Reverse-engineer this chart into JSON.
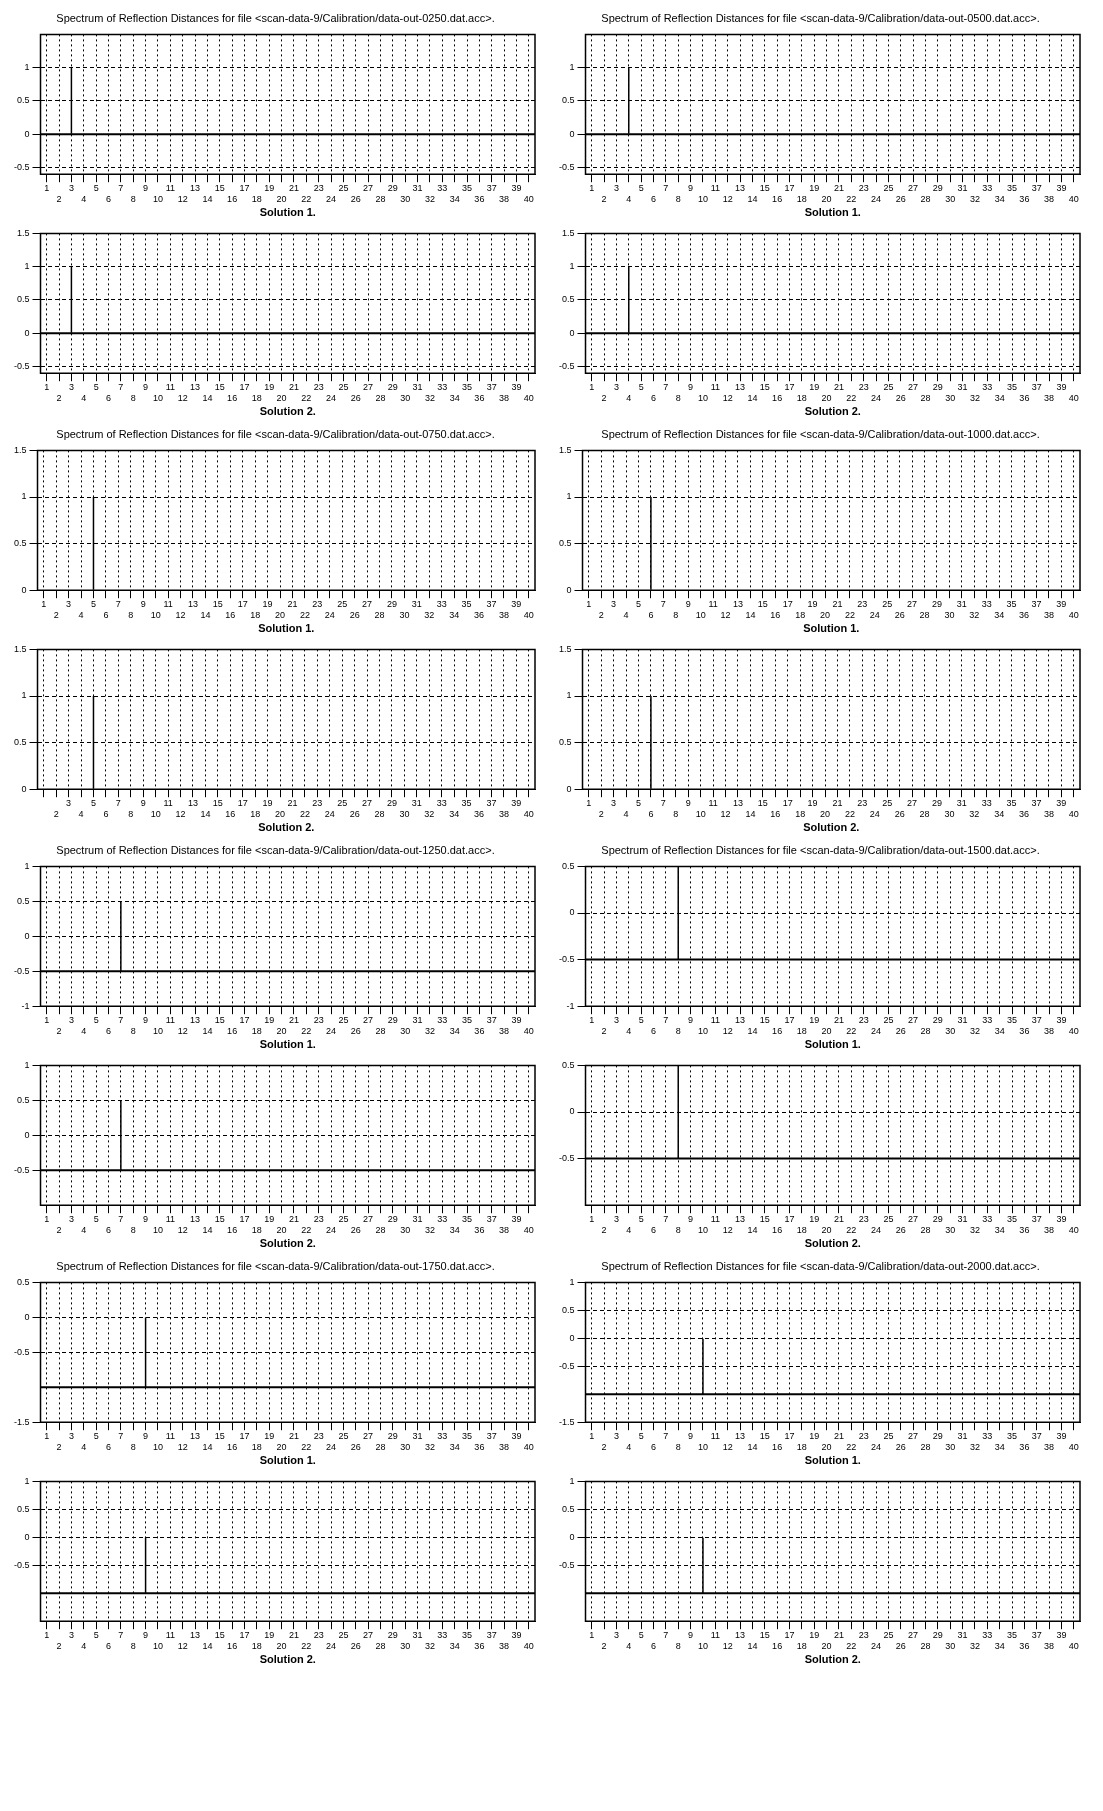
{
  "chart_data": [
    {
      "type": "bar",
      "title": "Spectrum of Reflection Distances for file <scan-data-9/Calibration/data-out-0250.dat.acc>.",
      "xlabel": "Solution 1.",
      "categories": [
        "1",
        "2",
        "3",
        "4",
        "5",
        "6",
        "7",
        "8",
        "9",
        "10",
        "11",
        "12",
        "13",
        "14",
        "15",
        "16",
        "17",
        "18",
        "19",
        "20",
        "21",
        "22",
        "23",
        "24",
        "25",
        "26",
        "27",
        "28",
        "29",
        "30",
        "31",
        "32",
        "33",
        "34",
        "35",
        "36",
        "37",
        "38",
        "39",
        "40"
      ],
      "values": [
        0,
        0,
        1,
        0,
        0,
        0,
        0,
        0,
        0,
        0,
        0,
        0,
        0,
        0,
        0,
        0,
        0,
        0,
        0,
        0,
        0,
        0,
        0,
        0,
        0,
        0,
        0,
        0,
        0,
        0,
        0,
        0,
        0,
        0,
        0,
        0,
        0,
        0,
        0,
        0
      ],
      "color": "#000000",
      "ylim": [
        -0.6,
        1.5
      ],
      "yticks": [
        -0.5,
        0,
        0.5,
        1
      ],
      "grid": true,
      "ref_lines": [
        {
          "axis": "y",
          "value": 0
        }
      ]
    },
    {
      "type": "bar",
      "title": "Spectrum of Reflection Distances for file <scan-data-9/Calibration/data-out-0500.dat.acc>.",
      "xlabel": "Solution 1.",
      "categories": [
        "1",
        "2",
        "3",
        "4",
        "5",
        "6",
        "7",
        "8",
        "9",
        "10",
        "11",
        "12",
        "13",
        "14",
        "15",
        "16",
        "17",
        "18",
        "19",
        "20",
        "21",
        "22",
        "23",
        "24",
        "25",
        "26",
        "27",
        "28",
        "29",
        "30",
        "31",
        "32",
        "33",
        "34",
        "35",
        "36",
        "37",
        "38",
        "39",
        "40"
      ],
      "values": [
        0,
        0,
        0,
        1,
        0,
        0,
        0,
        0,
        0,
        0,
        0,
        0,
        0,
        0,
        0,
        0,
        0,
        0,
        0,
        0,
        0,
        0,
        0,
        0,
        0,
        0,
        0,
        0,
        0,
        0,
        0,
        0,
        0,
        0,
        0,
        0,
        0,
        0,
        0,
        0
      ],
      "color": "#000000",
      "ylim": [
        -0.6,
        1.5
      ],
      "yticks": [
        -0.5,
        0,
        0.5,
        1
      ],
      "grid": true,
      "ref_lines": [
        {
          "axis": "y",
          "value": 0
        }
      ]
    },
    {
      "type": "bar",
      "xlabel": "Solution 2.",
      "categories": [
        "1",
        "2",
        "3",
        "4",
        "5",
        "6",
        "7",
        "8",
        "9",
        "10",
        "11",
        "12",
        "13",
        "14",
        "15",
        "16",
        "17",
        "18",
        "19",
        "20",
        "21",
        "22",
        "23",
        "24",
        "25",
        "26",
        "27",
        "28",
        "29",
        "30",
        "31",
        "32",
        "33",
        "34",
        "35",
        "36",
        "37",
        "38",
        "39",
        "40"
      ],
      "values": [
        0,
        0,
        1,
        0,
        0,
        0,
        0,
        0,
        0,
        0,
        0,
        0,
        0,
        0,
        0,
        0,
        0,
        0,
        0,
        0,
        0,
        0,
        0,
        0,
        0,
        0,
        0,
        0,
        0,
        0,
        0,
        0,
        0,
        0,
        0,
        0,
        0,
        0,
        0,
        0
      ],
      "color": "#000000",
      "ylim": [
        -0.6,
        1.5
      ],
      "yticks": [
        -0.5,
        0,
        0.5,
        1,
        1.5
      ],
      "grid": true,
      "ref_lines": [
        {
          "axis": "y",
          "value": 0
        }
      ]
    },
    {
      "type": "bar",
      "xlabel": "Solution 2.",
      "categories": [
        "1",
        "2",
        "3",
        "4",
        "5",
        "6",
        "7",
        "8",
        "9",
        "10",
        "11",
        "12",
        "13",
        "14",
        "15",
        "16",
        "17",
        "18",
        "19",
        "20",
        "21",
        "22",
        "23",
        "24",
        "25",
        "26",
        "27",
        "28",
        "29",
        "30",
        "31",
        "32",
        "33",
        "34",
        "35",
        "36",
        "37",
        "38",
        "39",
        "40"
      ],
      "values": [
        0,
        0,
        0,
        1,
        0,
        0,
        0,
        0,
        0,
        0,
        0,
        0,
        0,
        0,
        0,
        0,
        0,
        0,
        0,
        0,
        0,
        0,
        0,
        0,
        0,
        0,
        0,
        0,
        0,
        0,
        0,
        0,
        0,
        0,
        0,
        0,
        0,
        0,
        0,
        0
      ],
      "color": "#000000",
      "ylim": [
        -0.6,
        1.5
      ],
      "yticks": [
        -0.5,
        0,
        0.5,
        1,
        1.5
      ],
      "grid": true,
      "ref_lines": [
        {
          "axis": "y",
          "value": 0
        }
      ]
    },
    {
      "type": "bar",
      "title": "Spectrum of Reflection Distances for file <scan-data-9/Calibration/data-out-0750.dat.acc>.",
      "xlabel": "Solution 1.",
      "categories": [
        "1",
        "2",
        "3",
        "4",
        "5",
        "6",
        "7",
        "8",
        "9",
        "10",
        "11",
        "12",
        "13",
        "14",
        "15",
        "16",
        "17",
        "18",
        "19",
        "20",
        "21",
        "22",
        "23",
        "24",
        "25",
        "26",
        "27",
        "28",
        "29",
        "30",
        "31",
        "32",
        "33",
        "34",
        "35",
        "36",
        "37",
        "38",
        "39",
        "40"
      ],
      "values": [
        0,
        0,
        0,
        0,
        1,
        0,
        0,
        0,
        0,
        0,
        0,
        0,
        0,
        0,
        0,
        0,
        0,
        0,
        0,
        0,
        0,
        0,
        0,
        0,
        0,
        0,
        0,
        0,
        0,
        0,
        0,
        0,
        0,
        0,
        0,
        0,
        0,
        0,
        0,
        0
      ],
      "color": "#000000",
      "ylim": [
        0,
        1.5
      ],
      "yticks": [
        0,
        0.5,
        1,
        1.5
      ],
      "grid": true
    },
    {
      "type": "bar",
      "title": "Spectrum of Reflection Distances for file <scan-data-9/Calibration/data-out-1000.dat.acc>.",
      "xlabel": "Solution 1.",
      "categories": [
        "1",
        "2",
        "3",
        "4",
        "5",
        "6",
        "7",
        "8",
        "9",
        "10",
        "11",
        "12",
        "13",
        "14",
        "15",
        "16",
        "17",
        "18",
        "19",
        "20",
        "21",
        "22",
        "23",
        "24",
        "25",
        "26",
        "27",
        "28",
        "29",
        "30",
        "31",
        "32",
        "33",
        "34",
        "35",
        "36",
        "37",
        "38",
        "39",
        "40"
      ],
      "values": [
        0,
        0,
        0,
        0,
        0,
        1,
        0,
        0,
        0,
        0,
        0,
        0,
        0,
        0,
        0,
        0,
        0,
        0,
        0,
        0,
        0,
        0,
        0,
        0,
        0,
        0,
        0,
        0,
        0,
        0,
        0,
        0,
        0,
        0,
        0,
        0,
        0,
        0,
        0,
        0
      ],
      "color": "#000000",
      "ylim": [
        0,
        1.5
      ],
      "yticks": [
        0,
        0.5,
        1,
        1.5
      ],
      "grid": true
    },
    {
      "type": "bar",
      "xlabel": "Solution 2.",
      "categories": [
        null,
        "2",
        "3",
        "4",
        "5",
        "6",
        "7",
        "8",
        "9",
        "10",
        "11",
        "12",
        "13",
        "14",
        "15",
        "16",
        "17",
        "18",
        "19",
        "20",
        "21",
        "22",
        "23",
        "24",
        "25",
        "26",
        "27",
        "28",
        "29",
        "30",
        "31",
        "32",
        "33",
        "34",
        "35",
        "36",
        "37",
        "38",
        "39",
        "40"
      ],
      "values": [
        0,
        0,
        0,
        0,
        1,
        0,
        0,
        0,
        0,
        0,
        0,
        0,
        0,
        0,
        0,
        0,
        0,
        0,
        0,
        0,
        0,
        0,
        0,
        0,
        0,
        0,
        0,
        0,
        0,
        0,
        0,
        0,
        0,
        0,
        0,
        0,
        0,
        0,
        0,
        0
      ],
      "color": "#000000",
      "ylim": [
        0,
        1.5
      ],
      "yticks": [
        0,
        0.5,
        1,
        1.5
      ],
      "grid": true
    },
    {
      "type": "bar",
      "xlabel": "Solution 2.",
      "categories": [
        "1",
        "2",
        "3",
        "4",
        "5",
        "6",
        "7",
        "8",
        "9",
        "10",
        "11",
        "12",
        "13",
        "14",
        "15",
        "16",
        "17",
        "18",
        "19",
        "20",
        "21",
        "22",
        "23",
        "24",
        "25",
        "26",
        "27",
        "28",
        "29",
        "30",
        "31",
        "32",
        "33",
        "34",
        "35",
        "36",
        "37",
        "38",
        "39",
        "40"
      ],
      "values": [
        0,
        0,
        0,
        0,
        0,
        1,
        0,
        0,
        0,
        0,
        0,
        0,
        0,
        0,
        0,
        0,
        0,
        0,
        0,
        0,
        0,
        0,
        0,
        0,
        0,
        0,
        0,
        0,
        0,
        0,
        0,
        0,
        0,
        0,
        0,
        0,
        0,
        0,
        0,
        0
      ],
      "color": "#000000",
      "ylim": [
        0,
        1.5
      ],
      "yticks": [
        0,
        0.5,
        1,
        1.5
      ],
      "grid": true
    },
    {
      "type": "bar",
      "title": "Spectrum of Reflection Distances for file <scan-data-9/Calibration/data-out-1250.dat.acc>.",
      "xlabel": "Solution 1.",
      "categories": [
        "1",
        "2",
        "3",
        "4",
        "5",
        "6",
        "7",
        "8",
        "9",
        "10",
        "11",
        "12",
        "13",
        "14",
        "15",
        "16",
        "17",
        "18",
        "19",
        "20",
        "21",
        "22",
        "23",
        "24",
        "25",
        "26",
        "27",
        "28",
        "29",
        "30",
        "31",
        "32",
        "33",
        "34",
        "35",
        "36",
        "37",
        "38",
        "39",
        "40"
      ],
      "values": [
        null,
        null,
        null,
        null,
        null,
        null,
        1,
        null,
        null,
        null,
        null,
        null,
        null,
        null,
        null,
        null,
        null,
        null,
        null,
        null,
        null,
        null,
        null,
        null,
        null,
        null,
        null,
        null,
        null,
        null,
        null,
        null,
        null,
        null,
        null,
        null,
        null,
        null,
        null,
        null
      ],
      "base": [
        null,
        null,
        null,
        null,
        null,
        null,
        -0.5,
        null,
        null,
        null,
        null,
        null,
        null,
        null,
        null,
        null,
        null,
        null,
        null,
        null,
        null,
        null,
        null,
        null,
        null,
        null,
        null,
        null,
        null,
        null,
        null,
        null,
        null,
        null,
        null,
        null,
        null,
        null,
        null,
        null
      ],
      "color": "#000000",
      "ylim": [
        -1,
        1
      ],
      "yticks": [
        -1,
        -0.5,
        0,
        0.5,
        1
      ],
      "grid": true,
      "ref_lines": [
        {
          "axis": "y",
          "value": -0.5
        }
      ]
    },
    {
      "type": "bar",
      "title": "Spectrum of Reflection Distances for file <scan-data-9/Calibration/data-out-1500.dat.acc>.",
      "xlabel": "Solution 1.",
      "categories": [
        "1",
        "2",
        "3",
        "4",
        "5",
        "6",
        "7",
        "8",
        "9",
        "10",
        "11",
        "12",
        "13",
        "14",
        "15",
        "16",
        "17",
        "18",
        "19",
        "20",
        "21",
        "22",
        "23",
        "24",
        "25",
        "26",
        "27",
        "28",
        "29",
        "30",
        "31",
        "32",
        "33",
        "34",
        "35",
        "36",
        "37",
        "38",
        "39",
        "40"
      ],
      "values": [
        null,
        null,
        null,
        null,
        null,
        null,
        null,
        1,
        null,
        null,
        null,
        null,
        null,
        null,
        null,
        null,
        null,
        null,
        null,
        null,
        null,
        null,
        null,
        null,
        null,
        null,
        null,
        null,
        null,
        null,
        null,
        null,
        null,
        null,
        null,
        null,
        null,
        null,
        null,
        null
      ],
      "base": [
        null,
        null,
        null,
        null,
        null,
        null,
        null,
        -0.5,
        null,
        null,
        null,
        null,
        null,
        null,
        null,
        null,
        null,
        null,
        null,
        null,
        null,
        null,
        null,
        null,
        null,
        null,
        null,
        null,
        null,
        null,
        null,
        null,
        null,
        null,
        null,
        null,
        null,
        null,
        null,
        null
      ],
      "color": "#000000",
      "ylim": [
        -1,
        0.5
      ],
      "yticks": [
        -1,
        -0.5,
        0,
        0.5
      ],
      "grid": true,
      "ref_lines": [
        {
          "axis": "y",
          "value": -0.5
        }
      ]
    },
    {
      "type": "bar",
      "xlabel": "Solution 2.",
      "categories": [
        "1",
        "2",
        "3",
        "4",
        "5",
        "6",
        "7",
        "8",
        "9",
        "10",
        "11",
        "12",
        "13",
        "14",
        "15",
        "16",
        "17",
        "18",
        "19",
        "20",
        "21",
        "22",
        "23",
        "24",
        "25",
        "26",
        "27",
        "28",
        "29",
        "30",
        "31",
        "32",
        "33",
        "34",
        "35",
        "36",
        "37",
        "38",
        "39",
        "40"
      ],
      "values": [
        null,
        null,
        null,
        null,
        null,
        null,
        1,
        null,
        null,
        null,
        null,
        null,
        null,
        null,
        null,
        null,
        null,
        null,
        null,
        null,
        null,
        null,
        null,
        null,
        null,
        null,
        null,
        null,
        null,
        null,
        null,
        null,
        null,
        null,
        null,
        null,
        null,
        null,
        null,
        null
      ],
      "base": [
        null,
        null,
        null,
        null,
        null,
        null,
        -0.5,
        null,
        null,
        null,
        null,
        null,
        null,
        null,
        null,
        null,
        null,
        null,
        null,
        null,
        null,
        null,
        null,
        null,
        null,
        null,
        null,
        null,
        null,
        null,
        null,
        null,
        null,
        null,
        null,
        null,
        null,
        null,
        null,
        null
      ],
      "color": "#000000",
      "ylim": [
        -1,
        1
      ],
      "yticks": [
        -0.5,
        0,
        0.5,
        1
      ],
      "grid": true,
      "ref_lines": [
        {
          "axis": "y",
          "value": -0.5
        }
      ]
    },
    {
      "type": "bar",
      "xlabel": "Solution 2.",
      "categories": [
        "1",
        "2",
        "3",
        "4",
        "5",
        "6",
        "7",
        "8",
        "9",
        "10",
        "11",
        "12",
        "13",
        "14",
        "15",
        "16",
        "17",
        "18",
        "19",
        "20",
        "21",
        "22",
        "23",
        "24",
        "25",
        "26",
        "27",
        "28",
        "29",
        "30",
        "31",
        "32",
        "33",
        "34",
        "35",
        "36",
        "37",
        "38",
        "39",
        "40"
      ],
      "values": [
        null,
        null,
        null,
        null,
        null,
        null,
        null,
        1,
        null,
        null,
        null,
        null,
        null,
        null,
        null,
        null,
        null,
        null,
        null,
        null,
        null,
        null,
        null,
        null,
        null,
        null,
        null,
        null,
        null,
        null,
        null,
        null,
        null,
        null,
        null,
        null,
        null,
        null,
        null,
        null
      ],
      "base": [
        null,
        null,
        null,
        null,
        null,
        null,
        null,
        -0.5,
        null,
        null,
        null,
        null,
        null,
        null,
        null,
        null,
        null,
        null,
        null,
        null,
        null,
        null,
        null,
        null,
        null,
        null,
        null,
        null,
        null,
        null,
        null,
        null,
        null,
        null,
        null,
        null,
        null,
        null,
        null,
        null
      ],
      "color": "#000000",
      "ylim": [
        -1,
        0.5
      ],
      "yticks": [
        -0.5,
        0,
        0.5
      ],
      "grid": true,
      "ref_lines": [
        {
          "axis": "y",
          "value": -0.5
        }
      ]
    },
    {
      "type": "bar",
      "title": "Spectrum of Reflection Distances for file <scan-data-9/Calibration/data-out-1750.dat.acc>.",
      "xlabel": "Solution 1.",
      "categories": [
        "1",
        "2",
        "3",
        "4",
        "5",
        "6",
        "7",
        "8",
        "9",
        "10",
        "11",
        "12",
        "13",
        "14",
        "15",
        "16",
        "17",
        "18",
        "19",
        "20",
        "21",
        "22",
        "23",
        "24",
        "25",
        "26",
        "27",
        "28",
        "29",
        "30",
        "31",
        "32",
        "33",
        "34",
        "35",
        "36",
        "37",
        "38",
        "39",
        "40"
      ],
      "values": [
        null,
        null,
        null,
        null,
        null,
        null,
        null,
        null,
        1,
        null,
        null,
        null,
        null,
        null,
        null,
        null,
        null,
        null,
        null,
        null,
        null,
        null,
        null,
        null,
        null,
        null,
        null,
        null,
        null,
        null,
        null,
        null,
        null,
        null,
        null,
        null,
        null,
        null,
        null,
        null
      ],
      "base": [
        null,
        null,
        null,
        null,
        null,
        null,
        null,
        null,
        -1,
        null,
        null,
        null,
        null,
        null,
        null,
        null,
        null,
        null,
        null,
        null,
        null,
        null,
        null,
        null,
        null,
        null,
        null,
        null,
        null,
        null,
        null,
        null,
        null,
        null,
        null,
        null,
        null,
        null,
        null,
        null
      ],
      "color": "#000000",
      "ylim": [
        -1.5,
        0.5
      ],
      "yticks": [
        -1.5,
        -0.5,
        0,
        0.5
      ],
      "grid": true,
      "ref_lines": [
        {
          "axis": "y",
          "value": -1
        }
      ]
    },
    {
      "type": "bar",
      "title": "Spectrum of Reflection Distances for file <scan-data-9/Calibration/data-out-2000.dat.acc>.",
      "xlabel": "Solution 1.",
      "categories": [
        "1",
        "2",
        "3",
        "4",
        "5",
        "6",
        "7",
        "8",
        "9",
        "10",
        "11",
        "12",
        "13",
        "14",
        "15",
        "16",
        "17",
        "18",
        "19",
        "20",
        "21",
        "22",
        "23",
        "24",
        "25",
        "26",
        "27",
        "28",
        "29",
        "30",
        "31",
        "32",
        "33",
        "34",
        "35",
        "36",
        "37",
        "38",
        "39",
        "40"
      ],
      "values": [
        null,
        null,
        null,
        null,
        null,
        null,
        null,
        null,
        null,
        1,
        null,
        null,
        null,
        null,
        null,
        null,
        null,
        null,
        null,
        null,
        null,
        null,
        null,
        null,
        null,
        null,
        null,
        null,
        null,
        null,
        null,
        null,
        null,
        null,
        null,
        null,
        null,
        null,
        null,
        null
      ],
      "base": [
        null,
        null,
        null,
        null,
        null,
        null,
        null,
        null,
        null,
        -1,
        null,
        null,
        null,
        null,
        null,
        null,
        null,
        null,
        null,
        null,
        null,
        null,
        null,
        null,
        null,
        null,
        null,
        null,
        null,
        null,
        null,
        null,
        null,
        null,
        null,
        null,
        null,
        null,
        null,
        null
      ],
      "color": "#000000",
      "ylim": [
        -1.5,
        1
      ],
      "yticks": [
        -1.5,
        -0.5,
        0,
        0.5,
        1
      ],
      "grid": true,
      "ref_lines": [
        {
          "axis": "y",
          "value": -1
        }
      ]
    },
    {
      "type": "bar",
      "xlabel": "Solution 2.",
      "categories": [
        "1",
        "2",
        "3",
        "4",
        "5",
        "6",
        "7",
        "8",
        "9",
        "10",
        "11",
        "12",
        "13",
        "14",
        "15",
        "16",
        "17",
        "18",
        "19",
        "20",
        "21",
        "22",
        "23",
        "24",
        "25",
        "26",
        "27",
        "28",
        "29",
        "30",
        "31",
        "32",
        "33",
        "34",
        "35",
        "36",
        "37",
        "38",
        "39",
        "40"
      ],
      "values": [
        null,
        null,
        null,
        null,
        null,
        null,
        null,
        null,
        1,
        null,
        null,
        null,
        null,
        null,
        null,
        null,
        null,
        null,
        null,
        null,
        null,
        null,
        null,
        null,
        null,
        null,
        null,
        null,
        null,
        null,
        null,
        null,
        null,
        null,
        null,
        null,
        null,
        null,
        null,
        null
      ],
      "base": [
        null,
        null,
        null,
        null,
        null,
        null,
        null,
        null,
        -1,
        null,
        null,
        null,
        null,
        null,
        null,
        null,
        null,
        null,
        null,
        null,
        null,
        null,
        null,
        null,
        null,
        null,
        null,
        null,
        null,
        null,
        null,
        null,
        null,
        null,
        null,
        null,
        null,
        null,
        null,
        null
      ],
      "color": "#000000",
      "ylim": [
        -1.5,
        1
      ],
      "yticks": [
        -0.5,
        0,
        0.5,
        1
      ],
      "grid": true,
      "ref_lines": [
        {
          "axis": "y",
          "value": -1
        }
      ]
    },
    {
      "type": "bar",
      "xlabel": "Solution 2.",
      "categories": [
        "1",
        "2",
        "3",
        "4",
        "5",
        "6",
        "7",
        "8",
        "9",
        "10",
        "11",
        "12",
        "13",
        "14",
        "15",
        "16",
        "17",
        "18",
        "19",
        "20",
        "21",
        "22",
        "23",
        "24",
        "25",
        "26",
        "27",
        "28",
        "29",
        "30",
        "31",
        "32",
        "33",
        "34",
        "35",
        "36",
        "37",
        "38",
        "39",
        "40"
      ],
      "values": [
        null,
        null,
        null,
        null,
        null,
        null,
        null,
        null,
        null,
        1,
        null,
        null,
        null,
        null,
        null,
        null,
        null,
        null,
        null,
        null,
        null,
        null,
        null,
        null,
        null,
        null,
        null,
        null,
        null,
        null,
        null,
        null,
        null,
        null,
        null,
        null,
        null,
        null,
        null,
        null
      ],
      "base": [
        null,
        null,
        null,
        null,
        null,
        null,
        null,
        null,
        null,
        -1,
        null,
        null,
        null,
        null,
        null,
        null,
        null,
        null,
        null,
        null,
        null,
        null,
        null,
        null,
        null,
        null,
        null,
        null,
        null,
        null,
        null,
        null,
        null,
        null,
        null,
        null,
        null,
        null,
        null,
        null
      ],
      "color": "#000000",
      "ylim": [
        -1.5,
        1
      ],
      "yticks": [
        -0.5,
        0,
        0.5,
        1
      ],
      "grid": true,
      "ref_lines": [
        {
          "axis": "y",
          "value": -1
        }
      ]
    }
  ]
}
